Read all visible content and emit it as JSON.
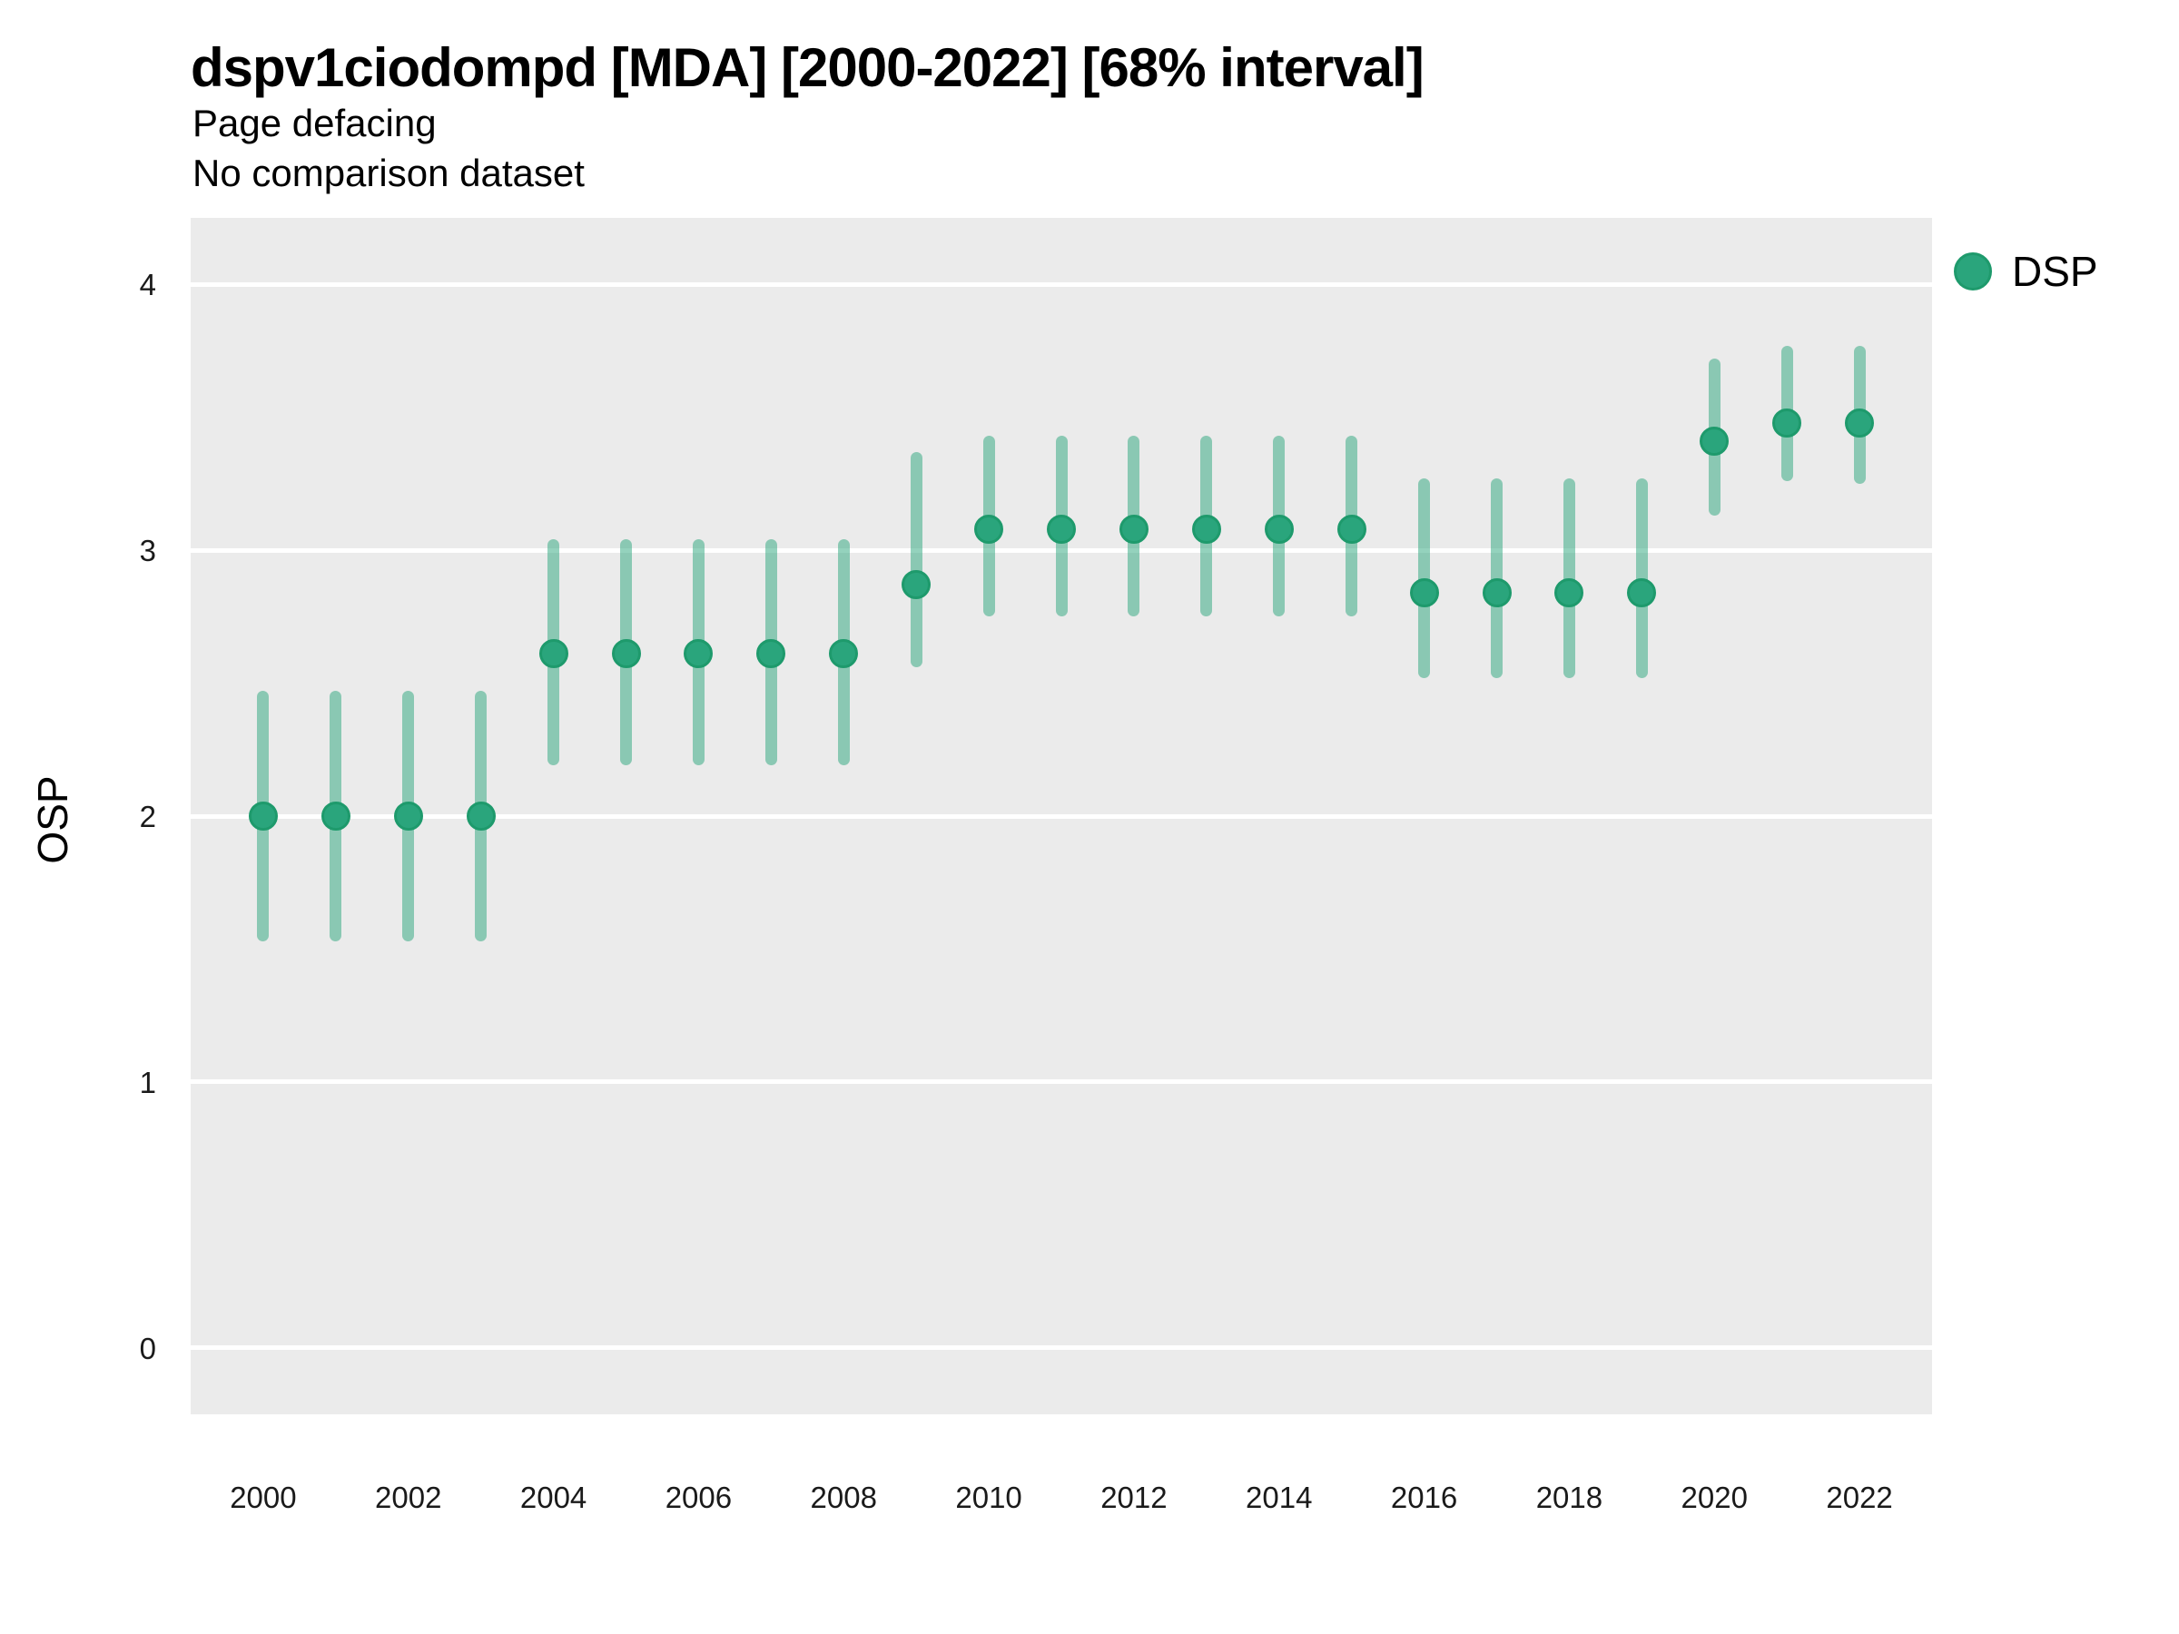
{
  "header": {
    "title": "dspv1ciodompd [MDA] [2000-2022] [68% interval]",
    "subtitle": "Page defacing",
    "comparison_note": "No comparison dataset"
  },
  "legend": {
    "items": [
      {
        "label": "DSP",
        "marker": "circle-icon",
        "color": "#2aa57c"
      }
    ]
  },
  "colors": {
    "panel_background": "#ebebeb",
    "gridline": "#ffffff",
    "point_fill": "#2aa57c",
    "point_stroke": "#1e9a6c",
    "interval_bar": "rgba(42,165,124,0.5)"
  },
  "chart_data": {
    "type": "scatter",
    "subtype": "pointrange",
    "title": "dspv1ciodompd [MDA] [2000-2022] [68% interval]",
    "subtitle": "Page defacing",
    "note": "No comparison dataset",
    "xlabel": "",
    "ylabel": "OSP",
    "xlim": [
      1999,
      2023
    ],
    "ylim": [
      -0.25,
      4.25
    ],
    "x_ticks": [
      2000,
      2002,
      2004,
      2006,
      2008,
      2010,
      2012,
      2014,
      2016,
      2018,
      2020,
      2022
    ],
    "y_ticks": [
      0,
      1,
      2,
      3,
      4
    ],
    "grid": "horizontal-major-only",
    "legend_position": "right",
    "interval": "68%",
    "series": [
      {
        "name": "DSP",
        "points": [
          {
            "year": 2000,
            "value": 2.0,
            "lower": 1.53,
            "upper": 2.47
          },
          {
            "year": 2001,
            "value": 2.0,
            "lower": 1.53,
            "upper": 2.47
          },
          {
            "year": 2002,
            "value": 2.0,
            "lower": 1.53,
            "upper": 2.47
          },
          {
            "year": 2003,
            "value": 2.0,
            "lower": 1.53,
            "upper": 2.47
          },
          {
            "year": 2004,
            "value": 2.61,
            "lower": 2.19,
            "upper": 3.04
          },
          {
            "year": 2005,
            "value": 2.61,
            "lower": 2.19,
            "upper": 3.04
          },
          {
            "year": 2006,
            "value": 2.61,
            "lower": 2.19,
            "upper": 3.04
          },
          {
            "year": 2007,
            "value": 2.61,
            "lower": 2.19,
            "upper": 3.04
          },
          {
            "year": 2008,
            "value": 2.61,
            "lower": 2.19,
            "upper": 3.04
          },
          {
            "year": 2009,
            "value": 2.87,
            "lower": 2.56,
            "upper": 3.37
          },
          {
            "year": 2010,
            "value": 3.08,
            "lower": 2.75,
            "upper": 3.43
          },
          {
            "year": 2011,
            "value": 3.08,
            "lower": 2.75,
            "upper": 3.43
          },
          {
            "year": 2012,
            "value": 3.08,
            "lower": 2.75,
            "upper": 3.43
          },
          {
            "year": 2013,
            "value": 3.08,
            "lower": 2.75,
            "upper": 3.43
          },
          {
            "year": 2014,
            "value": 3.08,
            "lower": 2.75,
            "upper": 3.43
          },
          {
            "year": 2015,
            "value": 3.08,
            "lower": 2.75,
            "upper": 3.43
          },
          {
            "year": 2016,
            "value": 2.84,
            "lower": 2.52,
            "upper": 3.27
          },
          {
            "year": 2017,
            "value": 2.84,
            "lower": 2.52,
            "upper": 3.27
          },
          {
            "year": 2018,
            "value": 2.84,
            "lower": 2.52,
            "upper": 3.27
          },
          {
            "year": 2019,
            "value": 2.84,
            "lower": 2.52,
            "upper": 3.27
          },
          {
            "year": 2020,
            "value": 3.41,
            "lower": 3.13,
            "upper": 3.72
          },
          {
            "year": 2021,
            "value": 3.48,
            "lower": 3.26,
            "upper": 3.77
          },
          {
            "year": 2022,
            "value": 3.48,
            "lower": 3.25,
            "upper": 3.77
          }
        ]
      }
    ]
  }
}
